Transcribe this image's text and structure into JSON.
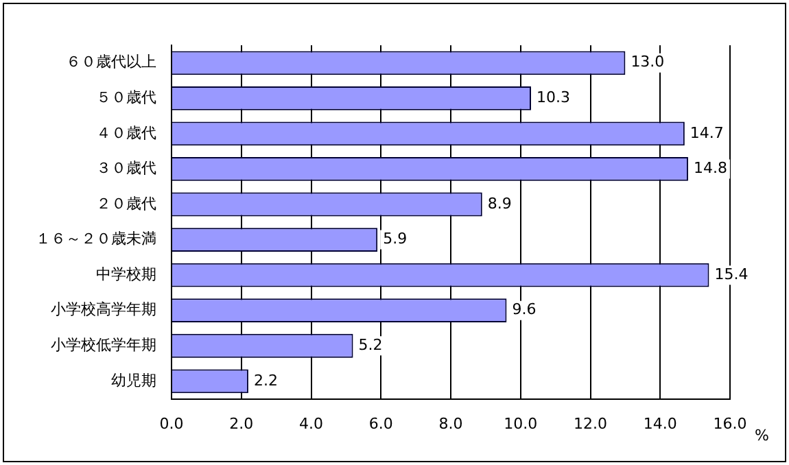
{
  "chart_data": {
    "type": "bar",
    "orientation": "horizontal",
    "categories": [
      "６０歳代以上",
      "５０歳代",
      "４０歳代",
      "３０歳代",
      "２０歳代",
      "１６～２０歳未満",
      "中学校期",
      "小学校高学年期",
      "小学校低学年期",
      "幼児期"
    ],
    "values": [
      13.0,
      10.3,
      14.7,
      14.8,
      8.9,
      5.9,
      15.4,
      9.6,
      5.2,
      2.2
    ],
    "value_labels": [
      "13.0",
      "10.3",
      "14.7",
      "14.8",
      "8.9",
      "5.9",
      "15.4",
      "9.6",
      "5.2",
      "2.2"
    ],
    "color": "#9999ff",
    "xlabel": "%",
    "xlim": [
      0,
      16
    ],
    "xticks": [
      {
        "value": 0,
        "label": "0.0"
      },
      {
        "value": 2,
        "label": "2.0"
      },
      {
        "value": 4,
        "label": "4.0"
      },
      {
        "value": 6,
        "label": "6.0"
      },
      {
        "value": 8,
        "label": "8.0"
      },
      {
        "value": 10,
        "label": "10.0"
      },
      {
        "value": 12,
        "label": "12.0"
      },
      {
        "value": 14,
        "label": "14.0"
      },
      {
        "value": 16,
        "label": "16.0"
      }
    ],
    "grid": "x",
    "legend": false
  }
}
